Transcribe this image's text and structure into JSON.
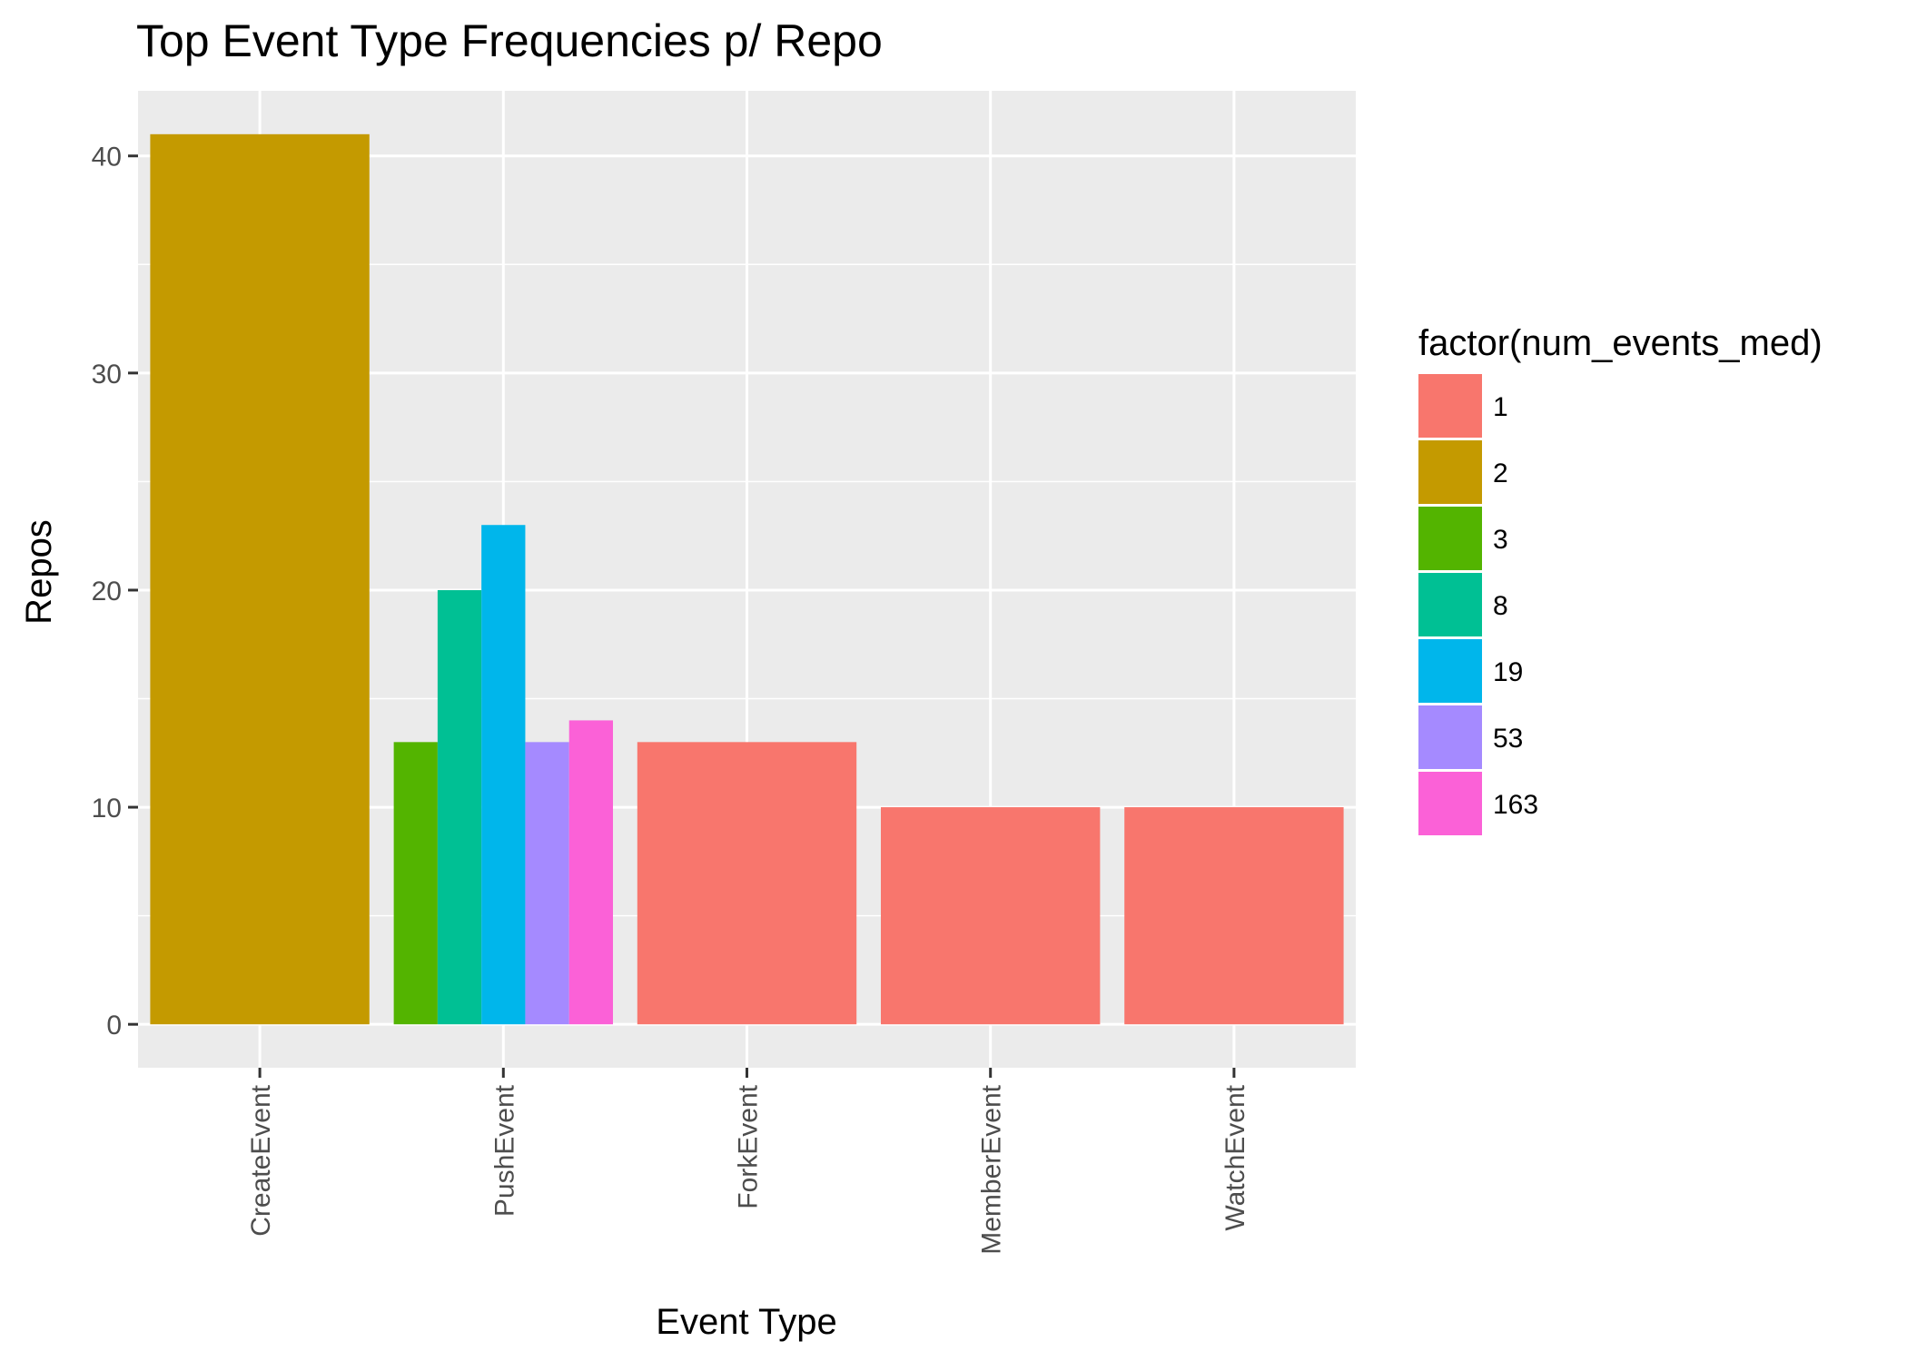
{
  "chart_data": {
    "type": "bar",
    "title": "Top Event Type Frequencies p/ Repo",
    "xlabel": "Event Type",
    "ylabel": "Repos",
    "ylim": [
      -2,
      43
    ],
    "yticks": [
      0,
      10,
      20,
      30,
      40
    ],
    "categories": [
      "CreateEvent",
      "PushEvent",
      "ForkEvent",
      "MemberEvent",
      "WatchEvent"
    ],
    "grid": true,
    "legend": {
      "title": "factor(num_events_med)",
      "position": "right",
      "entries": [
        {
          "label": "1",
          "color": "#F8766D"
        },
        {
          "label": "2",
          "color": "#C49A00"
        },
        {
          "label": "3",
          "color": "#53B400"
        },
        {
          "label": "8",
          "color": "#00C094"
        },
        {
          "label": "19",
          "color": "#00B6EB"
        },
        {
          "label": "53",
          "color": "#A58AFF"
        },
        {
          "label": "163",
          "color": "#FB61D7"
        }
      ]
    },
    "bars": [
      {
        "category": "CreateEvent",
        "group": "2",
        "value": 41
      },
      {
        "category": "PushEvent",
        "group": "3",
        "value": 13
      },
      {
        "category": "PushEvent",
        "group": "8",
        "value": 20
      },
      {
        "category": "PushEvent",
        "group": "19",
        "value": 23
      },
      {
        "category": "PushEvent",
        "group": "53",
        "value": 13
      },
      {
        "category": "PushEvent",
        "group": "163",
        "value": 14
      },
      {
        "category": "ForkEvent",
        "group": "1",
        "value": 13
      },
      {
        "category": "MemberEvent",
        "group": "1",
        "value": 10
      },
      {
        "category": "WatchEvent",
        "group": "1",
        "value": 10
      }
    ],
    "colors": {
      "panel_background": "#EBEBEB",
      "grid": "#FFFFFF",
      "tick_text": "#4D4D4D",
      "tick_mark": "#333333"
    }
  }
}
